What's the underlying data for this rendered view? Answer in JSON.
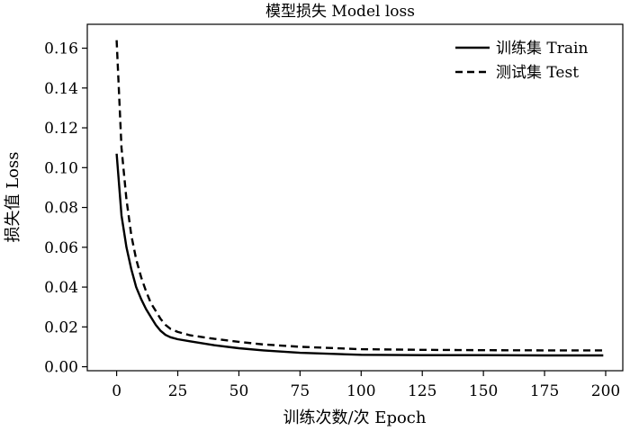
{
  "chart_data": {
    "type": "line",
    "title": "模型损失 Model loss",
    "xlabel": "训练次数/次 Epoch",
    "ylabel": "损失值 Loss",
    "xlim": [
      -12,
      207
    ],
    "ylim": [
      -0.002,
      0.172
    ],
    "xticks": [
      0,
      25,
      50,
      75,
      100,
      125,
      150,
      175,
      200
    ],
    "yticks": [
      0.0,
      0.02,
      0.04,
      0.06,
      0.08,
      0.1,
      0.12,
      0.14,
      0.16
    ],
    "ytick_labels": [
      "0.00",
      "0.02",
      "0.04",
      "0.06",
      "0.08",
      "0.10",
      "0.12",
      "0.14",
      "0.16"
    ],
    "legend_position": "top-right",
    "grid": false,
    "series": [
      {
        "name": "训练集 Train",
        "style": "solid",
        "color": "#000000",
        "x": [
          0,
          2,
          4,
          6,
          8,
          10,
          12,
          14,
          16,
          18,
          20,
          22,
          25,
          30,
          40,
          50,
          60,
          75,
          100,
          125,
          150,
          175,
          199
        ],
        "y": [
          0.107,
          0.076,
          0.06,
          0.049,
          0.04,
          0.034,
          0.029,
          0.025,
          0.021,
          0.018,
          0.016,
          0.0148,
          0.0138,
          0.0128,
          0.0108,
          0.0093,
          0.0082,
          0.007,
          0.006,
          0.0058,
          0.0058,
          0.0057,
          0.0057
        ]
      },
      {
        "name": "测试集 Test",
        "style": "dashed",
        "color": "#000000",
        "x": [
          0,
          2,
          4,
          6,
          8,
          10,
          12,
          14,
          16,
          18,
          20,
          22,
          25,
          30,
          40,
          50,
          60,
          75,
          100,
          125,
          150,
          175,
          199
        ],
        "y": [
          0.164,
          0.11,
          0.084,
          0.066,
          0.054,
          0.045,
          0.038,
          0.032,
          0.028,
          0.024,
          0.021,
          0.019,
          0.0175,
          0.0158,
          0.014,
          0.0125,
          0.0112,
          0.01,
          0.0088,
          0.0085,
          0.0083,
          0.0082,
          0.0082
        ]
      }
    ]
  }
}
